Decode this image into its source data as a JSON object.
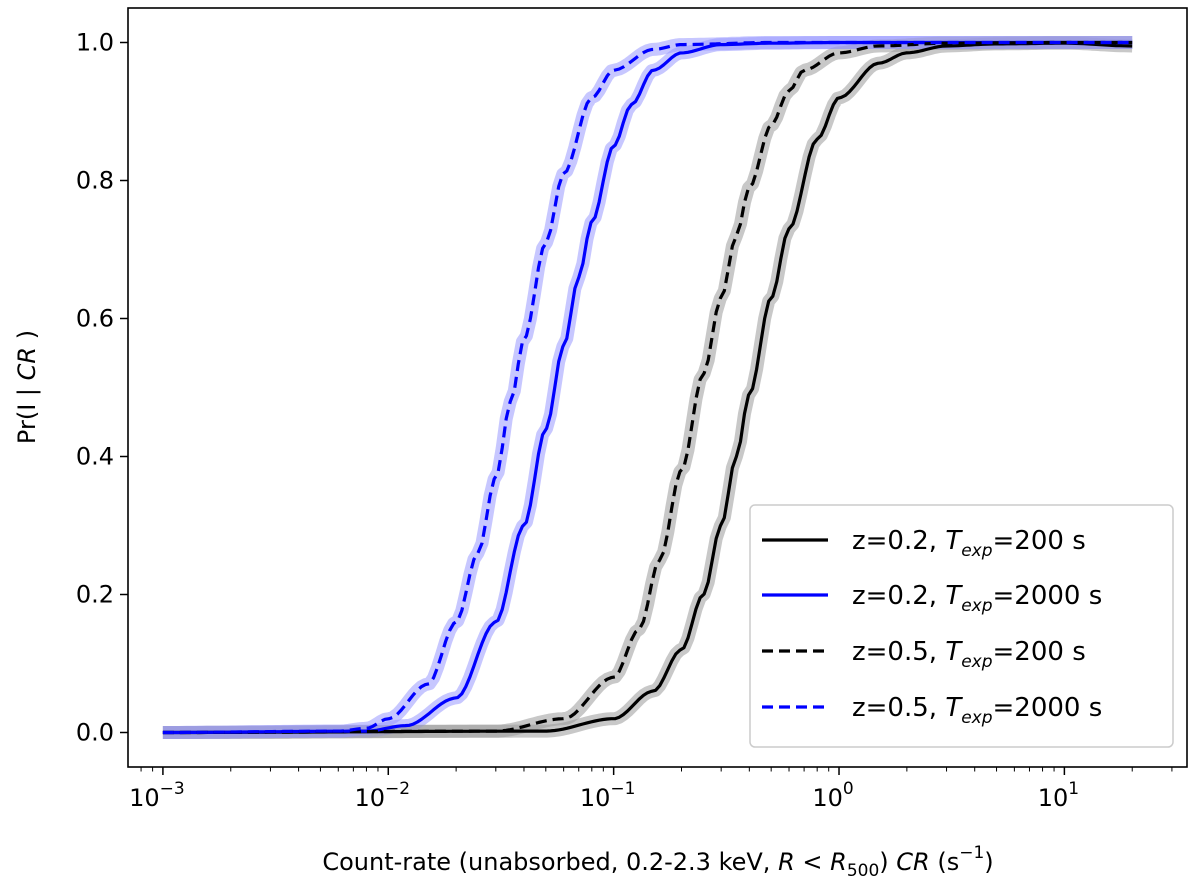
{
  "chart_data": {
    "type": "line",
    "title": "",
    "xlabel": {
      "prefix": "Count-rate (unabsorbed, 0.2-2.3 keV, ",
      "r_var": "R",
      "lt": " < ",
      "r500_var": "R",
      "r500_sub": "500",
      "close": ") ",
      "cr_var": "CR",
      "unit_open": " (s",
      "unit_sup": "−1",
      "unit_close": ")"
    },
    "ylabel": {
      "prefix": "Pr(I | ",
      "var": "CR",
      "suffix": " )"
    },
    "xscale": "log",
    "xlim": [
      0.0007,
      35
    ],
    "ylim": [
      -0.05,
      1.05
    ],
    "grid": false,
    "legend_position": "bottom-right",
    "x_ticks": [
      {
        "base": "10",
        "exp": "−3",
        "value": 0.001
      },
      {
        "base": "10",
        "exp": "−2",
        "value": 0.01
      },
      {
        "base": "10",
        "exp": "−1",
        "value": 0.1
      },
      {
        "base": "10",
        "exp": "0",
        "value": 1
      },
      {
        "base": "10",
        "exp": "1",
        "value": 10
      }
    ],
    "y_ticks": [
      {
        "label": "0.0",
        "value": 0.0
      },
      {
        "label": "0.2",
        "value": 0.2
      },
      {
        "label": "0.4",
        "value": 0.4
      },
      {
        "label": "0.6",
        "value": 0.6
      },
      {
        "label": "0.8",
        "value": 0.8
      },
      {
        "label": "1.0",
        "value": 1.0
      }
    ],
    "series": [
      {
        "id": "z02_t200",
        "legend_prefix": "z=0.2, ",
        "legend_var": "T",
        "legend_sub": "exp",
        "legend_suffix": "=200 s",
        "color": "#000000",
        "dash": "solid",
        "band_color": "#9a9a9a",
        "x": [
          0.001,
          0.05,
          0.1,
          0.15,
          0.2,
          0.25,
          0.3,
          0.35,
          0.4,
          0.5,
          0.6,
          0.8,
          1.0,
          1.5,
          2.0,
          3.0,
          5.0,
          10.0,
          20.0
        ],
        "y": [
          0.0,
          0.002,
          0.02,
          0.06,
          0.12,
          0.2,
          0.3,
          0.4,
          0.49,
          0.63,
          0.73,
          0.86,
          0.92,
          0.97,
          0.985,
          0.995,
          0.998,
          0.999,
          0.995
        ]
      },
      {
        "id": "z02_t2000",
        "legend_prefix": "z=0.2, ",
        "legend_var": "T",
        "legend_sub": "exp",
        "legend_suffix": "=2000 s",
        "color": "#0000ff",
        "dash": "solid",
        "band_color": "#9999ff",
        "x": [
          0.001,
          0.008,
          0.012,
          0.02,
          0.03,
          0.04,
          0.05,
          0.06,
          0.07,
          0.08,
          0.1,
          0.12,
          0.15,
          0.2,
          0.3,
          0.5,
          1.0,
          10.0,
          20.0
        ],
        "y": [
          0.0,
          0.002,
          0.01,
          0.05,
          0.16,
          0.3,
          0.44,
          0.56,
          0.66,
          0.74,
          0.85,
          0.91,
          0.96,
          0.985,
          0.997,
          0.999,
          1.0,
          1.0,
          1.0
        ]
      },
      {
        "id": "z05_t200",
        "legend_prefix": "z=0.5, ",
        "legend_var": "T",
        "legend_sub": "exp",
        "legend_suffix": "=200 s",
        "color": "#000000",
        "dash": "dashed",
        "band_color": "#9a9a9a",
        "x": [
          0.001,
          0.03,
          0.06,
          0.1,
          0.13,
          0.16,
          0.2,
          0.25,
          0.3,
          0.35,
          0.4,
          0.5,
          0.6,
          0.7,
          1.0,
          1.5,
          3.0,
          10.0,
          20.0
        ],
        "y": [
          0.0,
          0.002,
          0.02,
          0.08,
          0.15,
          0.25,
          0.38,
          0.52,
          0.63,
          0.72,
          0.79,
          0.88,
          0.93,
          0.96,
          0.985,
          0.995,
          0.999,
          1.0,
          1.0
        ]
      },
      {
        "id": "z05_t2000",
        "legend_prefix": "z=0.5, ",
        "legend_var": "T",
        "legend_sub": "exp",
        "legend_suffix": "=2000 s",
        "color": "#0000ff",
        "dash": "dashed",
        "band_color": "#9999ff",
        "x": [
          0.001,
          0.006,
          0.008,
          0.01,
          0.015,
          0.02,
          0.025,
          0.03,
          0.035,
          0.04,
          0.05,
          0.06,
          0.08,
          0.1,
          0.15,
          0.2,
          0.5,
          10.0,
          20.0
        ],
        "y": [
          0.0,
          0.002,
          0.006,
          0.02,
          0.07,
          0.16,
          0.26,
          0.37,
          0.48,
          0.57,
          0.71,
          0.81,
          0.92,
          0.96,
          0.99,
          0.997,
          1.0,
          1.0,
          1.0
        ]
      }
    ]
  }
}
